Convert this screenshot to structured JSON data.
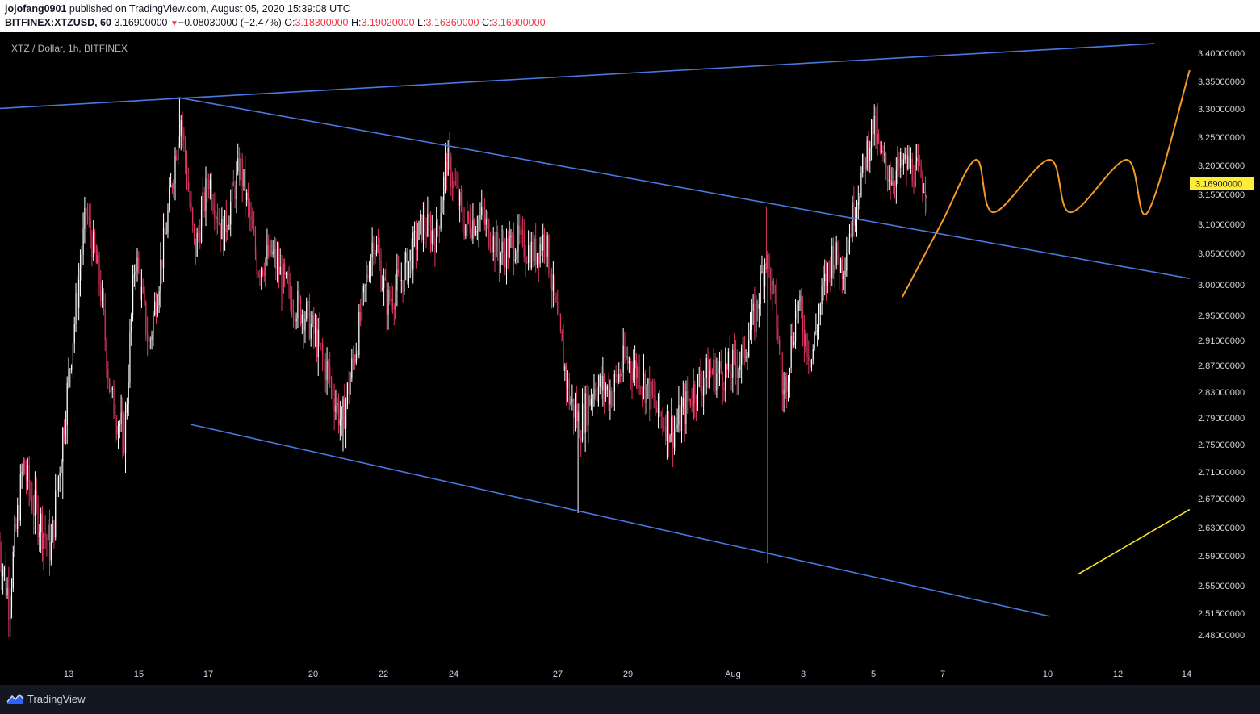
{
  "header": {
    "publisher": "jojofang0901",
    "published_text": "published on TradingView.com, August 05, 2020 15:39:08 UTC",
    "symbol": "BITFINEX:XTZUSD, 60",
    "last": "3.16900000",
    "change": "−0.08030000 (−2.47%)",
    "o_label": "O:",
    "o_value": "3.18300000",
    "h_label": "H:",
    "h_value": "3.19020000",
    "l_label": "L:",
    "l_value": "3.16360000",
    "c_label": "C:",
    "c_value": "3.16900000"
  },
  "footer": {
    "brand": "TradingView"
  },
  "colors": {
    "background": "#000000",
    "candle_up": "#ffffff",
    "candle_down": "#e0365f",
    "trendline": "#4a78e0",
    "projection": "#f59a23",
    "yellow_line": "#f5e02a",
    "price_badge": "#ffeb3b"
  },
  "chart_data": {
    "type": "candlestick",
    "title": "XTZ / Dollar, 1h, BITFINEX",
    "x_ticks": [
      "13",
      "15",
      "17",
      "20",
      "22",
      "24",
      "27",
      "29",
      "Aug",
      "3",
      "5",
      "7",
      "10",
      "12",
      "14"
    ],
    "y_ticks": [
      "3.40000000",
      "3.35000000",
      "3.30000000",
      "3.25000000",
      "3.20000000",
      "3.15000000",
      "3.10000000",
      "3.05000000",
      "3.00000000",
      "2.95000000",
      "2.91000000",
      "2.87000000",
      "2.83000000",
      "2.79000000",
      "2.75000000",
      "2.71000000",
      "2.67000000",
      "2.63000000",
      "2.59000000",
      "2.55000000",
      "2.51500000",
      "2.48000000"
    ],
    "last_price": "3.16900000",
    "price_range": [
      2.48,
      3.42
    ],
    "price_anchors": [
      {
        "day": 11.0,
        "price": 2.61
      },
      {
        "day": 11.3,
        "price": 2.53
      },
      {
        "day": 11.7,
        "price": 2.72
      },
      {
        "day": 12.0,
        "price": 2.66
      },
      {
        "day": 12.5,
        "price": 2.6
      },
      {
        "day": 13.0,
        "price": 2.85
      },
      {
        "day": 13.5,
        "price": 3.12
      },
      {
        "day": 13.9,
        "price": 3.0
      },
      {
        "day": 14.2,
        "price": 2.82
      },
      {
        "day": 14.6,
        "price": 2.76
      },
      {
        "day": 14.9,
        "price": 3.05
      },
      {
        "day": 15.3,
        "price": 2.9
      },
      {
        "day": 15.8,
        "price": 3.1
      },
      {
        "day": 16.2,
        "price": 3.29
      },
      {
        "day": 16.6,
        "price": 3.05
      },
      {
        "day": 17.0,
        "price": 3.18
      },
      {
        "day": 17.4,
        "price": 3.08
      },
      {
        "day": 17.9,
        "price": 3.2
      },
      {
        "day": 18.4,
        "price": 3.03
      },
      {
        "day": 18.8,
        "price": 3.05
      },
      {
        "day": 19.3,
        "price": 2.98
      },
      {
        "day": 19.8,
        "price": 2.95
      },
      {
        "day": 20.4,
        "price": 2.86
      },
      {
        "day": 20.8,
        "price": 2.78
      },
      {
        "day": 21.3,
        "price": 2.93
      },
      {
        "day": 21.7,
        "price": 3.08
      },
      {
        "day": 22.1,
        "price": 2.97
      },
      {
        "day": 22.6,
        "price": 3.02
      },
      {
        "day": 23.1,
        "price": 3.1
      },
      {
        "day": 23.5,
        "price": 3.08
      },
      {
        "day": 23.8,
        "price": 3.21
      },
      {
        "day": 24.3,
        "price": 3.1
      },
      {
        "day": 24.8,
        "price": 3.11
      },
      {
        "day": 25.3,
        "price": 3.05
      },
      {
        "day": 25.8,
        "price": 3.07
      },
      {
        "day": 26.3,
        "price": 3.05
      },
      {
        "day": 26.6,
        "price": 3.08
      },
      {
        "day": 27.0,
        "price": 2.92
      },
      {
        "day": 27.3,
        "price": 2.82
      },
      {
        "day": 27.6,
        "price": 2.78
      },
      {
        "day": 28.0,
        "price": 2.84
      },
      {
        "day": 28.5,
        "price": 2.83
      },
      {
        "day": 28.9,
        "price": 2.88
      },
      {
        "day": 29.3,
        "price": 2.86
      },
      {
        "day": 29.8,
        "price": 2.8
      },
      {
        "day": 30.3,
        "price": 2.77
      },
      {
        "day": 30.8,
        "price": 2.83
      },
      {
        "day": 31.3,
        "price": 2.86
      },
      {
        "day": 31.8,
        "price": 2.86
      },
      {
        "day": 32.2,
        "price": 2.88
      },
      {
        "day": 32.6,
        "price": 2.95
      },
      {
        "day": 32.9,
        "price": 3.05
      },
      {
        "day": 33.2,
        "price": 2.95
      },
      {
        "day": 33.4,
        "price": 2.82
      },
      {
        "day": 33.8,
        "price": 2.97
      },
      {
        "day": 34.2,
        "price": 2.88
      },
      {
        "day": 34.5,
        "price": 2.98
      },
      {
        "day": 34.8,
        "price": 3.05
      },
      {
        "day": 35.1,
        "price": 3.03
      },
      {
        "day": 35.4,
        "price": 3.12
      },
      {
        "day": 35.7,
        "price": 3.2
      },
      {
        "day": 35.95,
        "price": 3.27
      },
      {
        "day": 36.2,
        "price": 3.21
      },
      {
        "day": 36.5,
        "price": 3.18
      },
      {
        "day": 36.8,
        "price": 3.2
      },
      {
        "day": 37.0,
        "price": 3.2
      },
      {
        "day": 37.3,
        "price": 3.18
      },
      {
        "day": 37.5,
        "price": 3.169
      }
    ],
    "spike_wicks": [
      {
        "day": 12.85,
        "price": 2.67
      },
      {
        "day": 14.55,
        "price": 2.73
      },
      {
        "day": 16.15,
        "price": 3.32
      },
      {
        "day": 20.85,
        "price": 2.74
      },
      {
        "day": 23.75,
        "price": 3.24
      },
      {
        "day": 27.55,
        "price": 2.65
      },
      {
        "day": 32.95,
        "price": 2.58
      },
      {
        "day": 32.9,
        "price": 3.13
      },
      {
        "day": 36.1,
        "price": 3.31
      }
    ],
    "drawings": {
      "upper_trendline": [
        {
          "day": 10.8,
          "price": 3.3
        },
        {
          "day": 44.0,
          "price": 3.417
        }
      ],
      "descending_resistance": [
        {
          "day": 16.1,
          "price": 3.321
        },
        {
          "day": 45.0,
          "price": 3.01
        }
      ],
      "lower_support": [
        {
          "day": 16.5,
          "price": 2.78
        },
        {
          "day": 41.0,
          "price": 2.51
        }
      ],
      "yellow_line": [
        {
          "day": 41.8,
          "price": 2.565
        },
        {
          "day": 45.0,
          "price": 2.655
        }
      ],
      "orange_projection": [
        {
          "day": 36.8,
          "price": 2.98
        },
        {
          "day": 37.9,
          "price": 3.1
        },
        {
          "day": 38.9,
          "price": 3.21
        },
        {
          "day": 39.4,
          "price": 3.12
        },
        {
          "day": 41.0,
          "price": 3.21
        },
        {
          "day": 41.6,
          "price": 3.12
        },
        {
          "day": 43.2,
          "price": 3.21
        },
        {
          "day": 43.8,
          "price": 3.12
        },
        {
          "day": 45.0,
          "price": 3.37
        }
      ]
    }
  }
}
